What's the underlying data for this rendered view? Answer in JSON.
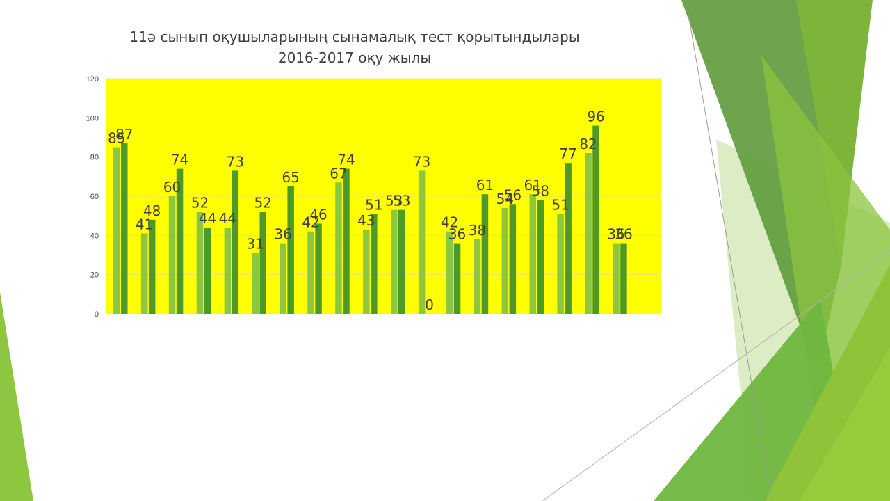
{
  "chart_data": {
    "type": "bar",
    "title": "11ә сынып оқушыларының сынамалық тест қорытындылары",
    "subtitle": "2016-2017 оқу жылы",
    "xlabel": "",
    "ylabel": "",
    "ylim": [
      0,
      120
    ],
    "yticks": [
      "0",
      "20",
      "40",
      "60",
      "80",
      "100",
      "120"
    ],
    "grid": true,
    "legend": "none",
    "plot_background": "#ffff00",
    "categories": [
      "",
      "",
      "",
      "",
      "",
      "",
      "",
      "",
      "",
      "",
      "",
      "",
      "",
      "",
      "",
      "",
      "",
      "",
      "",
      ""
    ],
    "series": [
      {
        "color": "#8dc63f",
        "values": [
          85,
          41,
          60,
          52,
          44,
          31,
          36,
          42,
          67,
          43,
          53,
          73,
          42,
          38,
          54,
          61,
          51,
          82,
          36,
          null
        ]
      },
      {
        "color": "#4e9a28",
        "values": [
          87,
          48,
          74,
          44,
          73,
          52,
          65,
          46,
          74,
          51,
          53,
          0,
          36,
          61,
          56,
          58,
          77,
          96,
          36,
          null
        ]
      }
    ]
  },
  "theme": {
    "accent_light": "#8dc63f",
    "accent_dark": "#5a8f2e",
    "accent_pale": "#d6ebb8"
  }
}
